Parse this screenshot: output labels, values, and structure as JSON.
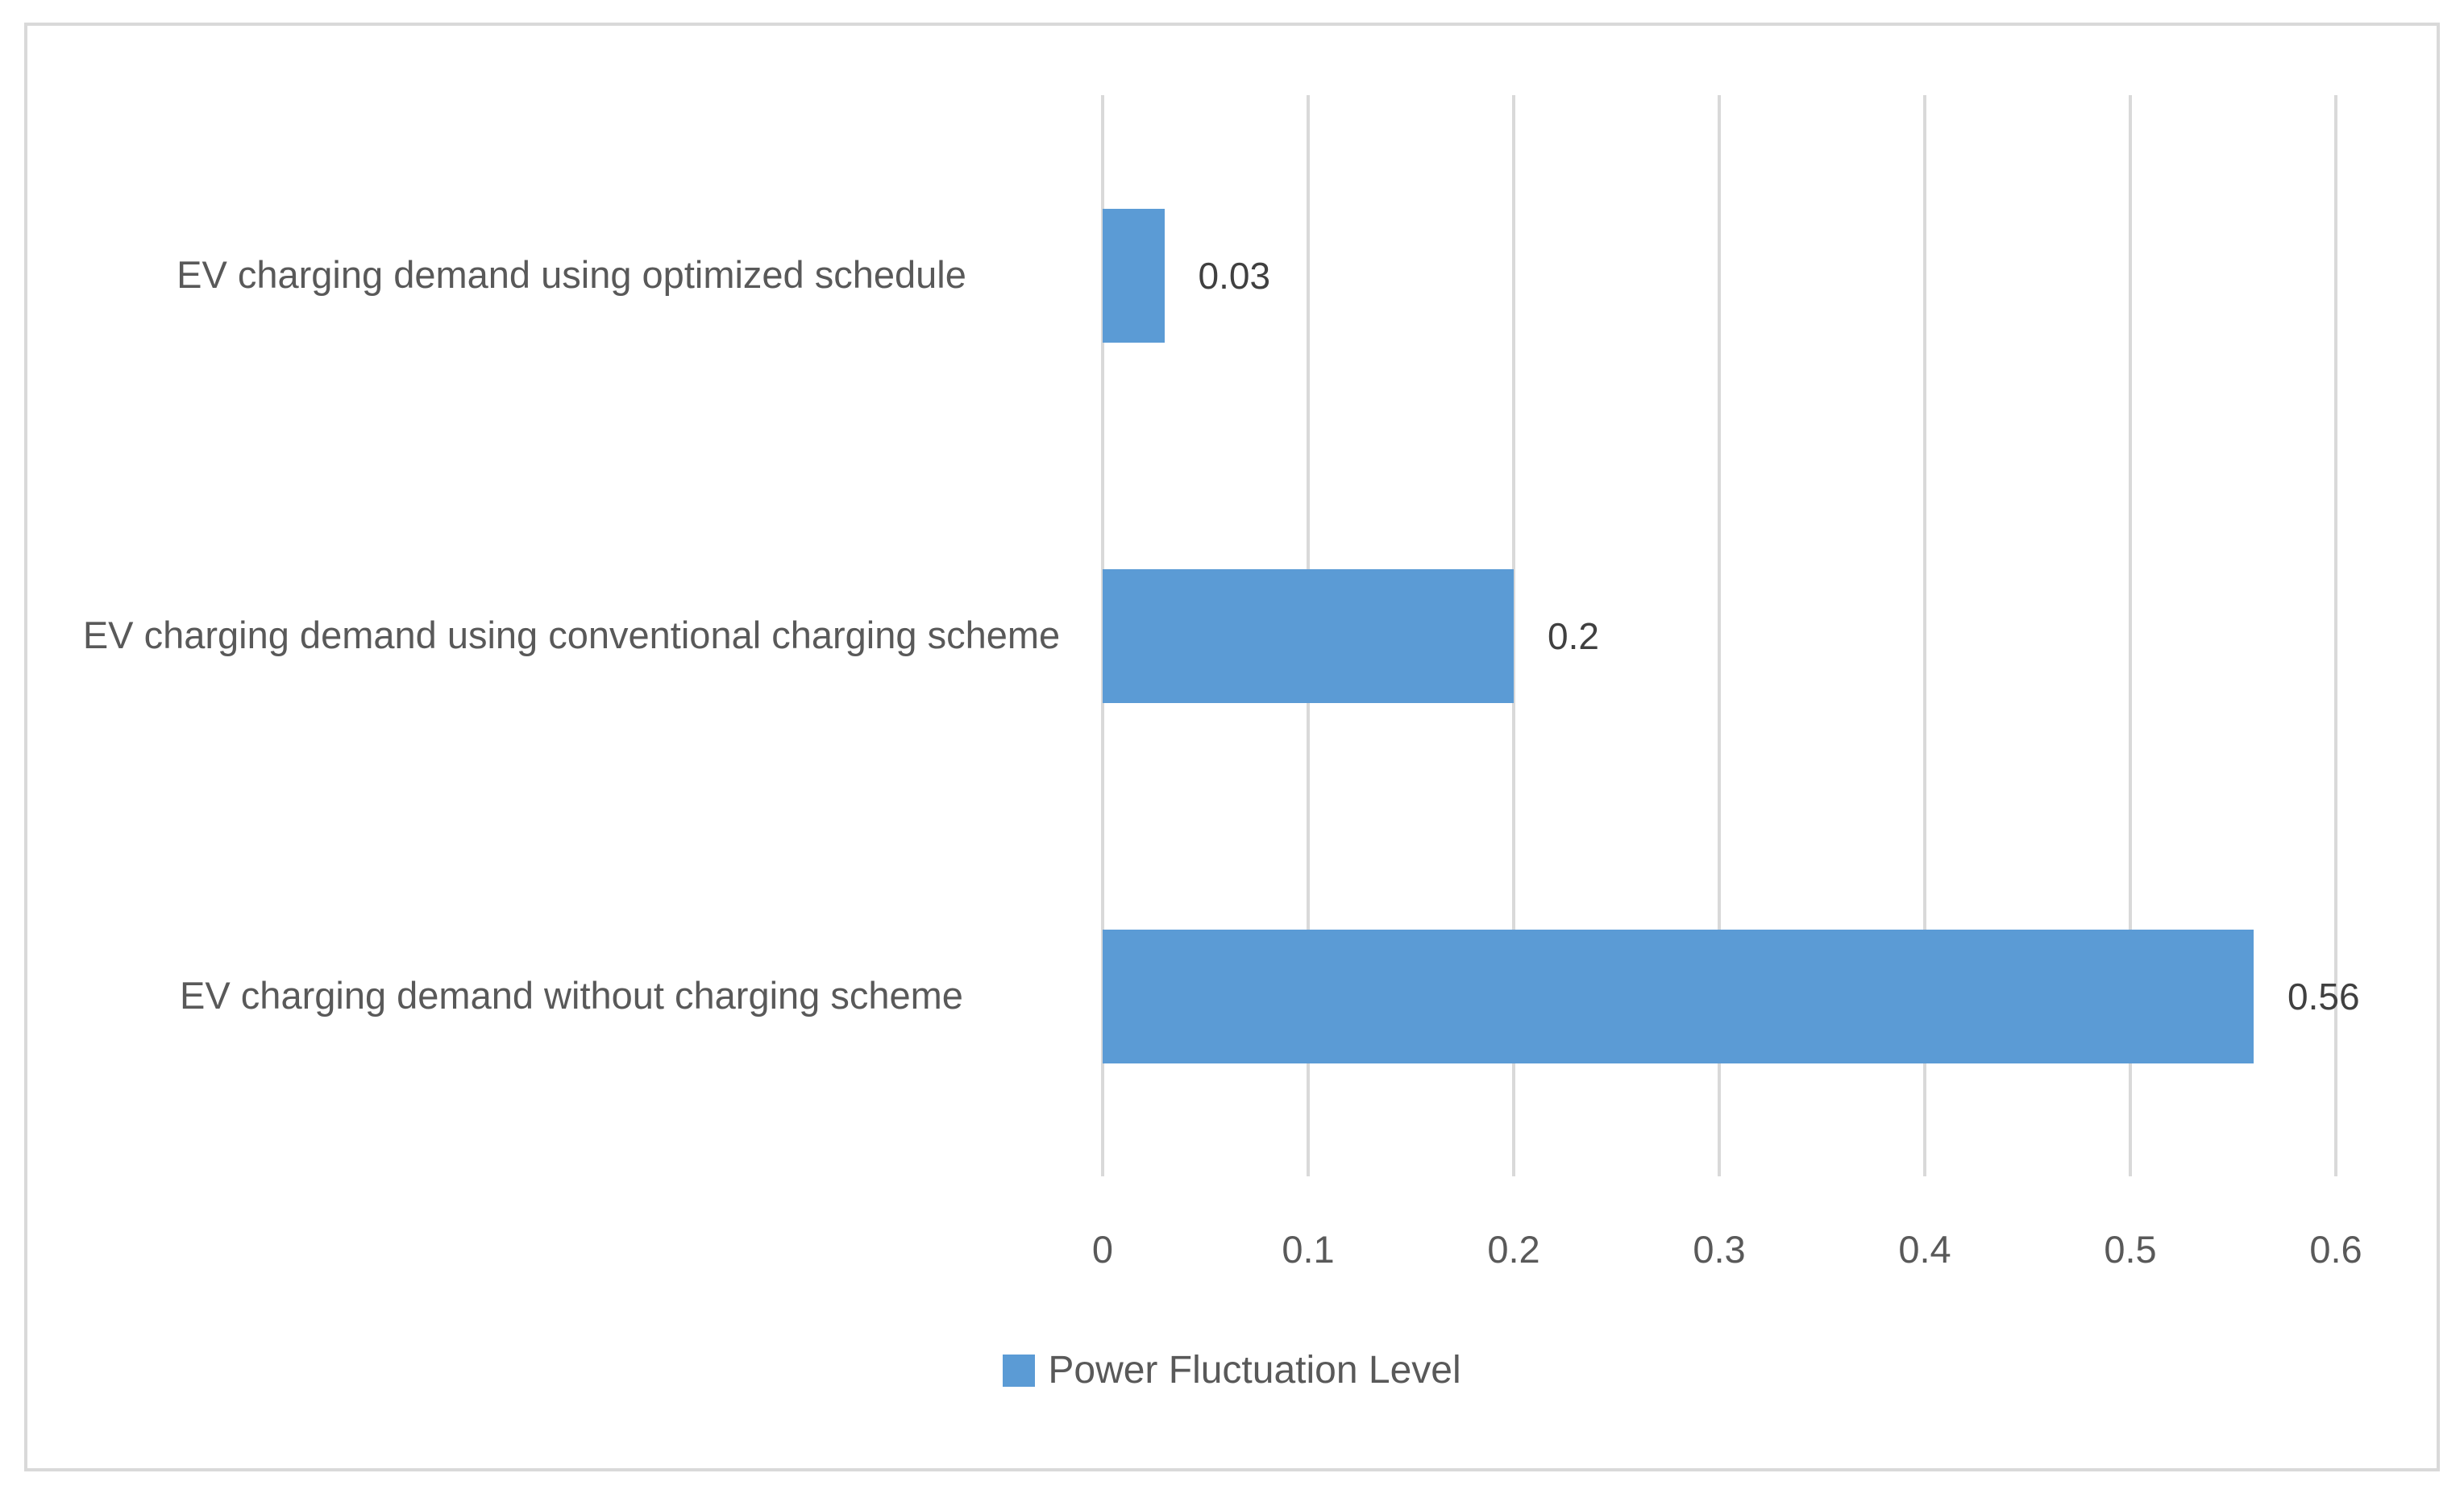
{
  "chart_data": {
    "type": "bar",
    "orientation": "horizontal",
    "title": "",
    "xlabel": "",
    "ylabel": "",
    "categories": [
      "EV charging demand using optimized schedule",
      "EV charging demand using conventional charging scheme",
      "EV charging demand without charging scheme"
    ],
    "values": [
      0.03,
      0.2,
      0.56
    ],
    "value_labels": [
      "0.03",
      "0.2",
      "0.56"
    ],
    "series_name": "Power Fluctuation Level",
    "x_ticks": [
      "0",
      "0.1",
      "0.2",
      "0.3",
      "0.4",
      "0.5",
      "0.6"
    ],
    "x_tick_values": [
      0,
      0.1,
      0.2,
      0.3,
      0.4,
      0.5,
      0.6
    ],
    "xlim": [
      0,
      0.6
    ],
    "grid": true,
    "legend_position": "bottom",
    "colors": {
      "bar": "#5b9bd5",
      "gridline": "#d9d9d9",
      "frame_border": "#d9d9d9",
      "category_text": "#595959",
      "tick_text": "#595959",
      "value_text": "#404040",
      "background": "#ffffff"
    }
  },
  "legend": {
    "label": "Power Fluctuation Level"
  }
}
